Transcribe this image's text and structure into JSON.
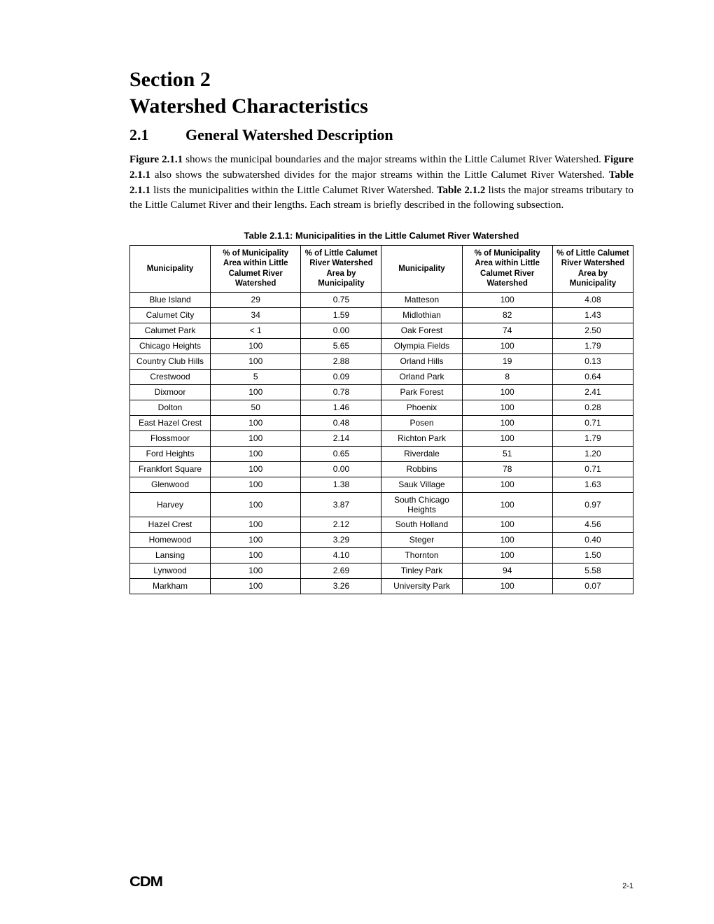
{
  "section": {
    "line1": "Section 2",
    "line2": "Watershed Characteristics"
  },
  "subsection": {
    "number": "2.1",
    "title": "General Watershed Description"
  },
  "paragraph": {
    "html": "<b>Figure 2.1.1</b> shows the municipal boundaries and the major streams within the Little Calumet River Watershed. <b>Figure 2.1.1</b> also shows the subwatershed divides for the major streams within the Little Calumet River Watershed. <b>Table 2.1.1</b> lists the municipalities within the Little Calumet River Watershed. <b>Table 2.1.2</b> lists the major streams tributary to the Little Calumet River and their lengths. Each stream is briefly described in the following subsection."
  },
  "table": {
    "caption": "Table 2.1.1:  Municipalities in the Little Calumet River Watershed",
    "headers": {
      "muni": "Municipality",
      "pct_area": "% of Municipality Area within Little Calumet River Watershed",
      "pct_ws": "% of Little Calumet River Watershed Area by Municipality"
    },
    "rows": [
      {
        "l_muni": "Blue Island",
        "l_a": "29",
        "l_b": "0.75",
        "r_muni": "Matteson",
        "r_a": "100",
        "r_b": "4.08"
      },
      {
        "l_muni": "Calumet City",
        "l_a": "34",
        "l_b": "1.59",
        "r_muni": "Midlothian",
        "r_a": "82",
        "r_b": "1.43"
      },
      {
        "l_muni": "Calumet Park",
        "l_a": "< 1",
        "l_b": "0.00",
        "r_muni": "Oak Forest",
        "r_a": "74",
        "r_b": "2.50"
      },
      {
        "l_muni": "Chicago Heights",
        "l_a": "100",
        "l_b": "5.65",
        "r_muni": "Olympia Fields",
        "r_a": "100",
        "r_b": "1.79"
      },
      {
        "l_muni": "Country Club Hills",
        "l_a": "100",
        "l_b": "2.88",
        "r_muni": "Orland Hills",
        "r_a": "19",
        "r_b": "0.13"
      },
      {
        "l_muni": "Crestwood",
        "l_a": "5",
        "l_b": "0.09",
        "r_muni": "Orland Park",
        "r_a": "8",
        "r_b": "0.64"
      },
      {
        "l_muni": "Dixmoor",
        "l_a": "100",
        "l_b": "0.78",
        "r_muni": "Park Forest",
        "r_a": "100",
        "r_b": "2.41"
      },
      {
        "l_muni": "Dolton",
        "l_a": "50",
        "l_b": "1.46",
        "r_muni": "Phoenix",
        "r_a": "100",
        "r_b": "0.28"
      },
      {
        "l_muni": "East Hazel Crest",
        "l_a": "100",
        "l_b": "0.48",
        "r_muni": "Posen",
        "r_a": "100",
        "r_b": "0.71"
      },
      {
        "l_muni": "Flossmoor",
        "l_a": "100",
        "l_b": "2.14",
        "r_muni": "Richton Park",
        "r_a": "100",
        "r_b": "1.79"
      },
      {
        "l_muni": "Ford Heights",
        "l_a": "100",
        "l_b": "0.65",
        "r_muni": "Riverdale",
        "r_a": "51",
        "r_b": "1.20"
      },
      {
        "l_muni": "Frankfort Square",
        "l_a": "100",
        "l_b": "0.00",
        "r_muni": "Robbins",
        "r_a": "78",
        "r_b": "0.71"
      },
      {
        "l_muni": "Glenwood",
        "l_a": "100",
        "l_b": "1.38",
        "r_muni": "Sauk Village",
        "r_a": "100",
        "r_b": "1.63"
      },
      {
        "l_muni": "Harvey",
        "l_a": "100",
        "l_b": "3.87",
        "r_muni": "South Chicago Heights",
        "r_a": "100",
        "r_b": "0.97"
      },
      {
        "l_muni": "Hazel Crest",
        "l_a": "100",
        "l_b": "2.12",
        "r_muni": "South Holland",
        "r_a": "100",
        "r_b": "4.56"
      },
      {
        "l_muni": "Homewood",
        "l_a": "100",
        "l_b": "3.29",
        "r_muni": "Steger",
        "r_a": "100",
        "r_b": "0.40"
      },
      {
        "l_muni": "Lansing",
        "l_a": "100",
        "l_b": "4.10",
        "r_muni": "Thornton",
        "r_a": "100",
        "r_b": "1.50"
      },
      {
        "l_muni": "Lynwood",
        "l_a": "100",
        "l_b": "2.69",
        "r_muni": "Tinley Park",
        "r_a": "94",
        "r_b": "5.58"
      },
      {
        "l_muni": "Markham",
        "l_a": "100",
        "l_b": "3.26",
        "r_muni": "University Park",
        "r_a": "100",
        "r_b": "0.07"
      }
    ],
    "border_color": "#000000",
    "header_fontsize": 11.5,
    "cell_fontsize": 12
  },
  "footer": {
    "logo": "CDM",
    "page": "2-1"
  },
  "colors": {
    "text": "#000000",
    "background": "#ffffff"
  }
}
